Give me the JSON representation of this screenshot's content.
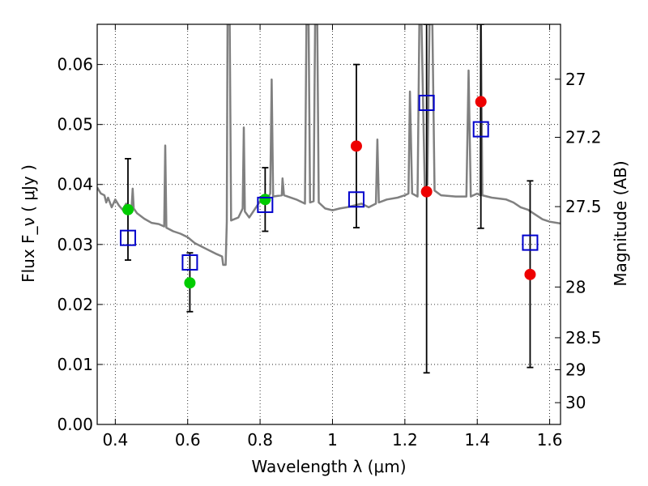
{
  "chart_data": {
    "type": "scatter",
    "title": "",
    "xlabel": "Wavelength  λ (μm)",
    "ylabel_left": "Flux  F_ν  ( μJy )",
    "ylabel_right": "Magnitude (AB)",
    "xlim": [
      0.35,
      1.63
    ],
    "ylim": [
      0.0,
      0.0667
    ],
    "grid": true,
    "x_ticks": [
      {
        "value": 0.4,
        "label": "0.4"
      },
      {
        "value": 0.6,
        "label": "0.6"
      },
      {
        "value": 0.8,
        "label": "0.8"
      },
      {
        "value": 1.0,
        "label": "1"
      },
      {
        "value": 1.2,
        "label": "1.2"
      },
      {
        "value": 1.4,
        "label": "1.4"
      },
      {
        "value": 1.6,
        "label": "1.6"
      }
    ],
    "y_ticks": [
      {
        "value": 0.0,
        "label": "0.00"
      },
      {
        "value": 0.01,
        "label": "0.01"
      },
      {
        "value": 0.02,
        "label": "0.02"
      },
      {
        "value": 0.03,
        "label": "0.03"
      },
      {
        "value": 0.04,
        "label": "0.04"
      },
      {
        "value": 0.05,
        "label": "0.05"
      },
      {
        "value": 0.06,
        "label": "0.06"
      }
    ],
    "right_ticks": [
      {
        "value": 27.0,
        "label": "27"
      },
      {
        "value": 27.2,
        "label": "27.2"
      },
      {
        "value": 27.5,
        "label": "27.5"
      },
      {
        "value": 28.0,
        "label": "28"
      },
      {
        "value": 28.5,
        "label": "28.5"
      },
      {
        "value": 29.0,
        "label": "29"
      },
      {
        "value": 30.0,
        "label": "30"
      }
    ],
    "colors": {
      "model": "#808080",
      "measured_green": "#00cc00",
      "measured_red": "#ee0000",
      "model_bands": "#0000cc",
      "errorbar": "#000000"
    },
    "series": [
      {
        "kind": "errorbar",
        "points": [
          {
            "x": 0.435,
            "low": 0.0274,
            "high": 0.0443
          },
          {
            "x": 0.606,
            "low": 0.0188,
            "high": 0.0286
          },
          {
            "x": 0.814,
            "low": 0.0322,
            "high": 0.0428
          },
          {
            "x": 1.066,
            "low": 0.0328,
            "high": 0.06
          },
          {
            "x": 1.26,
            "low": 0.0086,
            "high": 0.0667
          },
          {
            "x": 1.41,
            "low": 0.0327,
            "high": 0.0667
          },
          {
            "x": 1.546,
            "low": 0.0095,
            "high": 0.0406
          }
        ]
      },
      {
        "kind": "marker-circle",
        "color": "#00cc00",
        "points": [
          {
            "x": 0.435,
            "y": 0.0358
          },
          {
            "x": 0.606,
            "y": 0.0236
          },
          {
            "x": 0.814,
            "y": 0.0375
          }
        ]
      },
      {
        "kind": "marker-circle",
        "color": "#ee0000",
        "points": [
          {
            "x": 1.066,
            "y": 0.0464
          },
          {
            "x": 1.26,
            "y": 0.0388
          },
          {
            "x": 1.41,
            "y": 0.0538
          },
          {
            "x": 1.546,
            "y": 0.025
          }
        ]
      },
      {
        "kind": "marker-square",
        "color": "#0000cc",
        "points": [
          {
            "x": 0.435,
            "y": 0.0311
          },
          {
            "x": 0.606,
            "y": 0.027
          },
          {
            "x": 0.814,
            "y": 0.0366
          },
          {
            "x": 1.066,
            "y": 0.0375
          },
          {
            "x": 1.26,
            "y": 0.0536
          },
          {
            "x": 1.41,
            "y": 0.0492
          },
          {
            "x": 1.546,
            "y": 0.0303
          }
        ]
      }
    ],
    "model_spectrum": [
      [
        0.35,
        0.0395
      ],
      [
        0.36,
        0.0385
      ],
      [
        0.37,
        0.0382
      ],
      [
        0.375,
        0.037
      ],
      [
        0.38,
        0.0378
      ],
      [
        0.39,
        0.0362
      ],
      [
        0.4,
        0.0375
      ],
      [
        0.41,
        0.0365
      ],
      [
        0.42,
        0.0358
      ],
      [
        0.43,
        0.0368
      ],
      [
        0.44,
        0.0358
      ],
      [
        0.445,
        0.0362
      ],
      [
        0.448,
        0.0393
      ],
      [
        0.451,
        0.036
      ],
      [
        0.46,
        0.0352
      ],
      [
        0.48,
        0.0343
      ],
      [
        0.5,
        0.0336
      ],
      [
        0.52,
        0.0334
      ],
      [
        0.535,
        0.033
      ],
      [
        0.538,
        0.0465
      ],
      [
        0.541,
        0.0328
      ],
      [
        0.56,
        0.0322
      ],
      [
        0.58,
        0.0318
      ],
      [
        0.6,
        0.0312
      ],
      [
        0.62,
        0.0302
      ],
      [
        0.64,
        0.0296
      ],
      [
        0.66,
        0.029
      ],
      [
        0.68,
        0.0284
      ],
      [
        0.695,
        0.028
      ],
      [
        0.698,
        0.0266
      ],
      [
        0.705,
        0.0266
      ],
      [
        0.708,
        0.0338
      ],
      [
        0.71,
        0.0667
      ],
      [
        0.716,
        0.0667
      ],
      [
        0.72,
        0.034
      ],
      [
        0.74,
        0.0345
      ],
      [
        0.752,
        0.036
      ],
      [
        0.755,
        0.0495
      ],
      [
        0.758,
        0.0355
      ],
      [
        0.77,
        0.0345
      ],
      [
        0.8,
        0.0372
      ],
      [
        0.82,
        0.0375
      ],
      [
        0.828,
        0.0385
      ],
      [
        0.832,
        0.0575
      ],
      [
        0.836,
        0.038
      ],
      [
        0.86,
        0.0382
      ],
      [
        0.862,
        0.041
      ],
      [
        0.866,
        0.0382
      ],
      [
        0.9,
        0.0375
      ],
      [
        0.924,
        0.0368
      ],
      [
        0.928,
        0.0667
      ],
      [
        0.934,
        0.0667
      ],
      [
        0.938,
        0.037
      ],
      [
        0.948,
        0.0372
      ],
      [
        0.952,
        0.0667
      ],
      [
        0.958,
        0.0667
      ],
      [
        0.962,
        0.037
      ],
      [
        0.98,
        0.036
      ],
      [
        1.0,
        0.0357
      ],
      [
        1.02,
        0.036
      ],
      [
        1.04,
        0.0362
      ],
      [
        1.06,
        0.0365
      ],
      [
        1.08,
        0.0368
      ],
      [
        1.1,
        0.0362
      ],
      [
        1.12,
        0.0368
      ],
      [
        1.124,
        0.0475
      ],
      [
        1.128,
        0.037
      ],
      [
        1.15,
        0.0375
      ],
      [
        1.18,
        0.0378
      ],
      [
        1.2,
        0.0382
      ],
      [
        1.21,
        0.0385
      ],
      [
        1.214,
        0.0555
      ],
      [
        1.22,
        0.0385
      ],
      [
        1.235,
        0.038
      ],
      [
        1.24,
        0.0667
      ],
      [
        1.246,
        0.0667
      ],
      [
        1.255,
        0.0395
      ],
      [
        1.262,
        0.04
      ],
      [
        1.268,
        0.0667
      ],
      [
        1.276,
        0.0667
      ],
      [
        1.282,
        0.039
      ],
      [
        1.3,
        0.0382
      ],
      [
        1.34,
        0.038
      ],
      [
        1.37,
        0.038
      ],
      [
        1.376,
        0.059
      ],
      [
        1.382,
        0.038
      ],
      [
        1.4,
        0.0385
      ],
      [
        1.408,
        0.0382
      ],
      [
        1.41,
        0.0667
      ],
      [
        1.414,
        0.0382
      ],
      [
        1.44,
        0.0378
      ],
      [
        1.48,
        0.0375
      ],
      [
        1.5,
        0.037
      ],
      [
        1.52,
        0.0362
      ],
      [
        1.54,
        0.0358
      ],
      [
        1.56,
        0.035
      ],
      [
        1.58,
        0.0342
      ],
      [
        1.6,
        0.0338
      ],
      [
        1.63,
        0.0335
      ]
    ]
  }
}
